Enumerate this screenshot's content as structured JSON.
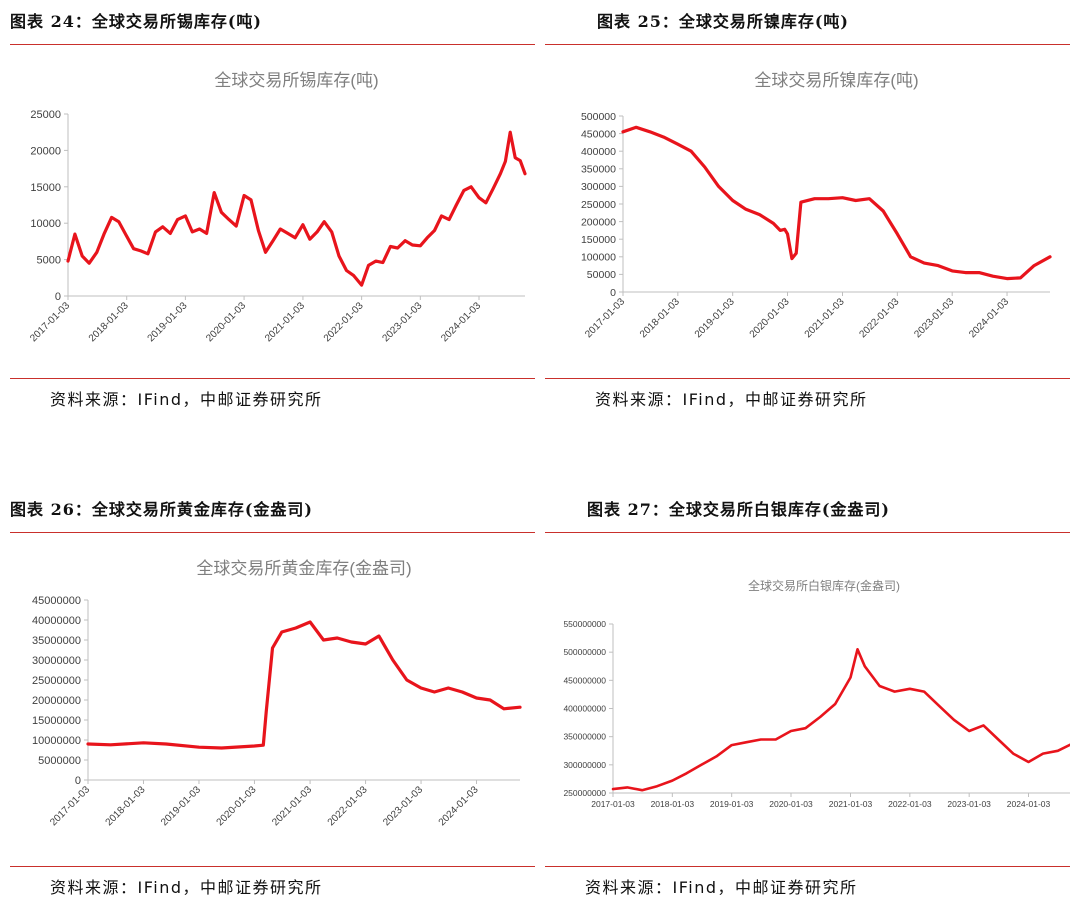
{
  "panels": [
    {
      "title": "图表 24：全球交易所锡库存(吨)",
      "source": "资料来源：IFind，中邮证券研究所",
      "chart_data": {
        "type": "line",
        "title": "全球交易所锡库存(吨)",
        "xlabel": "",
        "ylabel": "",
        "xlim": [
          "2017-01-03",
          "2024-10-15"
        ],
        "ylim": [
          0,
          25000
        ],
        "yticks": [
          0,
          5000,
          10000,
          15000,
          20000,
          25000
        ],
        "xticks": [
          "2017-01-03",
          "2018-01-03",
          "2019-01-03",
          "2020-01-03",
          "2021-01-03",
          "2022-01-03",
          "2023-01-03",
          "2024-01-03"
        ],
        "grid": false,
        "legend": "none",
        "color": "#e8141c",
        "series": [
          {
            "x": [
              "2017-01-03",
              "2017-02-15",
              "2017-04-01",
              "2017-05-15",
              "2017-07-01",
              "2017-08-15",
              "2017-10-01",
              "2017-11-15",
              "2018-01-03",
              "2018-02-15",
              "2018-04-01",
              "2018-05-15",
              "2018-07-01",
              "2018-08-15",
              "2018-10-01",
              "2018-11-15",
              "2019-01-03",
              "2019-02-15",
              "2019-04-01",
              "2019-05-15",
              "2019-07-01",
              "2019-08-15",
              "2019-10-01",
              "2019-11-15",
              "2020-01-03",
              "2020-02-15",
              "2020-04-01",
              "2020-05-15",
              "2020-07-01",
              "2020-08-15",
              "2020-10-01",
              "2020-11-15",
              "2021-01-03",
              "2021-02-15",
              "2021-04-01",
              "2021-05-15",
              "2021-07-01",
              "2021-08-15",
              "2021-10-01",
              "2021-11-15",
              "2022-01-03",
              "2022-02-15",
              "2022-04-01",
              "2022-05-15",
              "2022-07-01",
              "2022-08-15",
              "2022-10-01",
              "2022-11-15",
              "2023-01-03",
              "2023-02-15",
              "2023-04-01",
              "2023-05-15",
              "2023-07-01",
              "2023-08-15",
              "2023-10-01",
              "2023-11-15",
              "2024-01-03",
              "2024-02-15",
              "2024-04-01",
              "2024-05-15",
              "2024-06-15",
              "2024-07-15",
              "2024-08-15",
              "2024-09-15",
              "2024-10-15"
            ],
            "y": [
              4800,
              8500,
              5500,
              4500,
              6000,
              8500,
              10800,
              10200,
              8200,
              6500,
              6200,
              5800,
              8800,
              9500,
              8600,
              10500,
              11000,
              8800,
              9200,
              8600,
              14200,
              11500,
              10500,
              9600,
              13800,
              13200,
              9000,
              6000,
              7600,
              9200,
              8600,
              8000,
              9800,
              7800,
              8800,
              10200,
              8800,
              5500,
              3500,
              2800,
              1500,
              4200,
              4800,
              4600,
              6800,
              6600,
              7600,
              7000,
              6900,
              8000,
              9000,
              11000,
              10500,
              12500,
              14500,
              15000,
              13500,
              12800,
              14800,
              16800,
              18500,
              22500,
              19000,
              18600,
              16800
            ]
          }
        ]
      }
    },
    {
      "title": "图表 25：全球交易所镍库存(吨)",
      "source": "资料来源：IFind，中邮证券研究所",
      "chart_data": {
        "type": "line",
        "title": "全球交易所镍库存(吨)",
        "xlabel": "",
        "ylabel": "",
        "xlim": [
          "2017-01-03",
          "2024-10-15"
        ],
        "ylim": [
          0,
          500000
        ],
        "yticks": [
          0,
          50000,
          100000,
          150000,
          200000,
          250000,
          300000,
          350000,
          400000,
          450000,
          500000
        ],
        "xticks": [
          "2017-01-03",
          "2018-01-03",
          "2019-01-03",
          "2020-01-03",
          "2021-01-03",
          "2022-01-03",
          "2023-01-03",
          "2024-01-03"
        ],
        "grid": false,
        "legend": "none",
        "color": "#e8141c",
        "series": [
          {
            "x": [
              "2017-01-03",
              "2017-04-01",
              "2017-07-01",
              "2017-10-01",
              "2018-01-03",
              "2018-04-01",
              "2018-07-01",
              "2018-10-01",
              "2019-01-03",
              "2019-04-01",
              "2019-07-01",
              "2019-10-01",
              "2019-11-15",
              "2019-12-15",
              "2020-01-03",
              "2020-02-01",
              "2020-03-01",
              "2020-04-01",
              "2020-07-01",
              "2020-10-01",
              "2021-01-03",
              "2021-04-01",
              "2021-07-01",
              "2021-10-01",
              "2022-01-03",
              "2022-04-01",
              "2022-07-01",
              "2022-10-01",
              "2023-01-03",
              "2023-04-01",
              "2023-07-01",
              "2023-10-01",
              "2024-01-03",
              "2024-04-01",
              "2024-07-01",
              "2024-10-15"
            ],
            "y": [
              455000,
              468000,
              455000,
              440000,
              420000,
              400000,
              355000,
              300000,
              260000,
              235000,
              220000,
              195000,
              175000,
              178000,
              165000,
              95000,
              110000,
              255000,
              265000,
              265000,
              268000,
              260000,
              265000,
              230000,
              165000,
              100000,
              82000,
              75000,
              60000,
              55000,
              55000,
              45000,
              38000,
              40000,
              75000,
              100000
            ]
          }
        ]
      }
    },
    {
      "title": "图表 26：全球交易所黄金库存(金盎司)",
      "source": "资料来源：IFind，中邮证券研究所",
      "chart_data": {
        "type": "line",
        "title": "全球交易所黄金库存(金盎司)",
        "xlabel": "",
        "ylabel": "",
        "xlim": [
          "2017-01-03",
          "2024-10-15"
        ],
        "ylim": [
          0,
          45000000
        ],
        "yticks": [
          0,
          5000000,
          10000000,
          15000000,
          20000000,
          25000000,
          30000000,
          35000000,
          40000000,
          45000000
        ],
        "xticks": [
          "2017-01-03",
          "2018-01-03",
          "2019-01-03",
          "2020-01-03",
          "2021-01-03",
          "2022-01-03",
          "2023-01-03",
          "2024-01-03"
        ],
        "grid": false,
        "legend": "none",
        "color": "#e8141c",
        "series": [
          {
            "x": [
              "2017-01-03",
              "2017-06-01",
              "2018-01-03",
              "2018-06-01",
              "2019-01-03",
              "2019-06-01",
              "2020-01-03",
              "2020-03-01",
              "2020-03-20",
              "2020-05-01",
              "2020-07-01",
              "2020-10-01",
              "2021-01-03",
              "2021-04-01",
              "2021-07-01",
              "2021-10-01",
              "2022-01-03",
              "2022-04-01",
              "2022-07-01",
              "2022-10-01",
              "2023-01-03",
              "2023-04-01",
              "2023-07-01",
              "2023-10-01",
              "2024-01-03",
              "2024-04-01",
              "2024-07-01",
              "2024-10-15"
            ],
            "y": [
              9000000,
              8800000,
              9300000,
              9000000,
              8200000,
              8000000,
              8500000,
              8700000,
              17000000,
              33000000,
              37000000,
              38000000,
              39500000,
              35000000,
              35500000,
              34500000,
              34000000,
              36000000,
              30000000,
              25000000,
              23000000,
              22000000,
              23000000,
              22000000,
              20500000,
              20000000,
              17800000,
              18200000
            ]
          }
        ]
      }
    },
    {
      "title": "图表 27：全球交易所白银库存(金盎司)",
      "source": "资料来源：IFind，中邮证券研究所",
      "chart_data": {
        "type": "line",
        "title": "全球交易所白银库存(金盎司)",
        "xlabel": "",
        "ylabel": "",
        "xlim": [
          "2017-01-03",
          "2024-10-15"
        ],
        "ylim": [
          250000000,
          550000000
        ],
        "yticks": [
          250000000,
          300000000,
          350000000,
          400000000,
          450000000,
          500000000,
          550000000
        ],
        "xticks": [
          "2017-01-03",
          "2018-01-03",
          "2019-01-03",
          "2020-01-03",
          "2021-01-03",
          "2022-01-03",
          "2023-01-03",
          "2024-01-03"
        ],
        "grid": false,
        "legend": "none",
        "color": "#e8141c",
        "series": [
          {
            "x": [
              "2017-01-03",
              "2017-04-01",
              "2017-07-01",
              "2017-10-01",
              "2018-01-03",
              "2018-04-01",
              "2018-07-01",
              "2018-10-01",
              "2019-01-03",
              "2019-04-01",
              "2019-07-01",
              "2019-10-01",
              "2020-01-03",
              "2020-04-01",
              "2020-07-01",
              "2020-10-01",
              "2021-01-03",
              "2021-02-15",
              "2021-04-01",
              "2021-07-01",
              "2021-10-01",
              "2022-01-03",
              "2022-04-01",
              "2022-07-01",
              "2022-10-01",
              "2023-01-03",
              "2023-04-01",
              "2023-07-01",
              "2023-10-01",
              "2024-01-03",
              "2024-04-01",
              "2024-07-01",
              "2024-10-15"
            ],
            "y": [
              257000000,
              260000000,
              255000000,
              262000000,
              272000000,
              285000000,
              300000000,
              315000000,
              335000000,
              340000000,
              345000000,
              345000000,
              360000000,
              365000000,
              385000000,
              408000000,
              455000000,
              505000000,
              475000000,
              440000000,
              430000000,
              435000000,
              430000000,
              405000000,
              380000000,
              360000000,
              370000000,
              345000000,
              320000000,
              305000000,
              320000000,
              325000000,
              340000000
            ]
          }
        ]
      }
    }
  ]
}
